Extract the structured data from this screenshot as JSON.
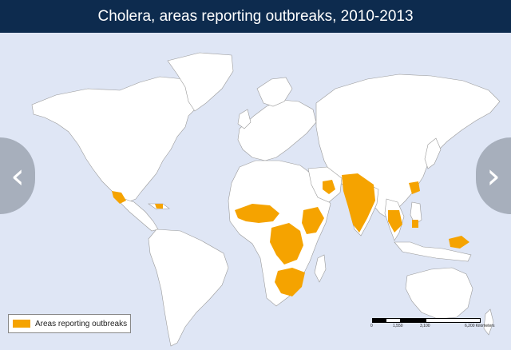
{
  "title": "Cholera, areas reporting outbreaks, 2010-2013",
  "legend": {
    "label": "Areas reporting outbreaks",
    "color": "#f5a300"
  },
  "scale": {
    "labels": [
      "0",
      "1,550",
      "3,100",
      "6,200 Kilometers"
    ]
  },
  "nav": {
    "prev_icon": "chevron-left-icon",
    "next_icon": "chevron-right-icon",
    "prev_glyph": "‹",
    "next_glyph": "›"
  },
  "colors": {
    "ocean": "#dfe6f5",
    "land": "#ffffff",
    "outbreak": "#f5a300",
    "title_bg": "#0d2b4e"
  }
}
